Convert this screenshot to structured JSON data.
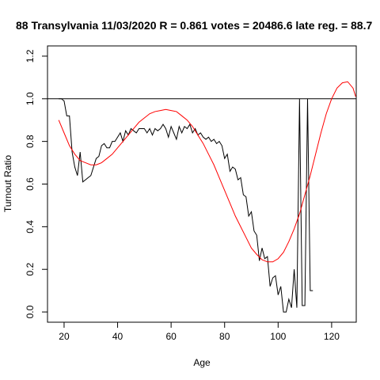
{
  "chart_data": {
    "type": "line",
    "title": "88 Transylvania 11/03/2020 R = 0.861 votes = 20486.6 late reg. = 88.7",
    "xlabel": "Age",
    "ylabel": "Turnout Ratio",
    "xlim": [
      13.8,
      129.2
    ],
    "ylim": [
      -0.048,
      1.248
    ],
    "xticks": [
      20,
      40,
      60,
      80,
      100,
      120
    ],
    "yticks": [
      {
        "value": 0,
        "label": "0.0"
      },
      0.2,
      0.4,
      0.6,
      0.8,
      {
        "value": 1,
        "label": "1.0"
      },
      1.2
    ],
    "hline": 1,
    "series": [
      {
        "color": "#000000",
        "x": [
          18,
          19,
          20,
          21,
          22,
          23,
          24,
          25,
          26,
          27,
          28,
          29,
          30,
          31,
          32,
          33,
          34,
          35,
          36,
          37,
          38,
          39,
          40,
          41,
          42,
          43,
          44,
          45,
          46,
          47,
          48,
          49,
          50,
          51,
          52,
          53,
          54,
          55,
          56,
          57,
          58,
          59,
          60,
          61,
          62,
          63,
          64,
          65,
          66,
          67,
          68,
          69,
          70,
          71,
          72,
          73,
          74,
          75,
          76,
          77,
          78,
          79,
          80,
          81,
          82,
          83,
          84,
          85,
          86,
          87,
          88,
          89,
          90,
          91,
          92,
          93,
          94,
          95,
          96,
          97,
          98,
          99,
          100,
          101,
          102,
          103,
          104,
          105,
          106,
          107,
          108,
          109,
          110,
          111,
          112,
          113
        ],
        "values": [
          1.0,
          1.0,
          0.99,
          0.92,
          0.92,
          0.75,
          0.68,
          0.64,
          0.75,
          0.61,
          0.62,
          0.63,
          0.64,
          0.68,
          0.72,
          0.73,
          0.78,
          0.79,
          0.77,
          0.77,
          0.8,
          0.8,
          0.82,
          0.84,
          0.8,
          0.85,
          0.83,
          0.86,
          0.85,
          0.84,
          0.86,
          0.86,
          0.86,
          0.84,
          0.86,
          0.83,
          0.86,
          0.85,
          0.86,
          0.88,
          0.86,
          0.82,
          0.87,
          0.84,
          0.81,
          0.87,
          0.84,
          0.87,
          0.86,
          0.88,
          0.84,
          0.86,
          0.83,
          0.84,
          0.82,
          0.81,
          0.82,
          0.8,
          0.81,
          0.79,
          0.8,
          0.78,
          0.72,
          0.74,
          0.66,
          0.68,
          0.67,
          0.62,
          0.63,
          0.55,
          0.54,
          0.45,
          0.47,
          0.38,
          0.36,
          0.24,
          0.3,
          0.25,
          0.26,
          0.12,
          0.16,
          0.17,
          0.08,
          0.12,
          0.0,
          0.0,
          0.06,
          0.02,
          0.2,
          0.02,
          1.0,
          0.03,
          0.03,
          1.0,
          0.1,
          0.1
        ]
      },
      {
        "color": "#ff0000",
        "x": [
          18,
          20,
          22,
          24,
          26,
          28,
          30,
          32,
          34,
          36,
          38,
          40,
          42,
          44,
          46,
          48,
          50,
          52,
          54,
          56,
          58,
          60,
          62,
          64,
          66,
          68,
          70,
          72,
          74,
          76,
          78,
          80,
          82,
          84,
          86,
          88,
          90,
          92,
          94,
          96,
          98,
          100,
          102,
          104,
          106,
          108,
          110,
          112,
          114,
          116,
          118,
          120,
          122,
          124,
          126,
          128,
          129
        ],
        "values": [
          0.9,
          0.84,
          0.78,
          0.74,
          0.71,
          0.7,
          0.69,
          0.69,
          0.7,
          0.72,
          0.74,
          0.77,
          0.8,
          0.83,
          0.86,
          0.89,
          0.91,
          0.93,
          0.94,
          0.945,
          0.95,
          0.945,
          0.94,
          0.92,
          0.9,
          0.87,
          0.83,
          0.79,
          0.74,
          0.69,
          0.63,
          0.57,
          0.51,
          0.45,
          0.4,
          0.35,
          0.3,
          0.27,
          0.245,
          0.235,
          0.235,
          0.25,
          0.28,
          0.33,
          0.39,
          0.46,
          0.55,
          0.64,
          0.74,
          0.84,
          0.93,
          1.0,
          1.05,
          1.075,
          1.08,
          1.05,
          1.01
        ]
      }
    ]
  }
}
